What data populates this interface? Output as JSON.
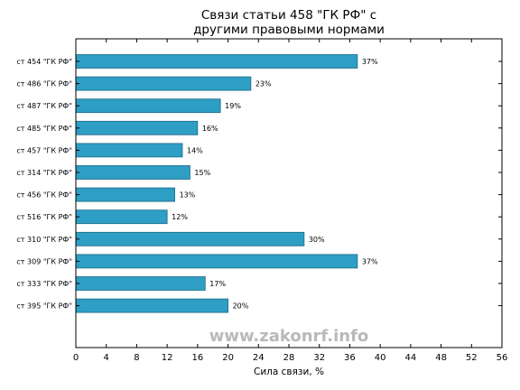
{
  "chart_data": {
    "type": "bar",
    "orientation": "horizontal",
    "title": [
      "Связи статьи 458 \"ГК РФ\" с",
      "другими правовыми нормами"
    ],
    "xlabel": "Сила связи, %",
    "xlim": [
      0,
      56
    ],
    "xticks": [
      0,
      4,
      8,
      12,
      16,
      20,
      24,
      28,
      32,
      36,
      40,
      44,
      48,
      52,
      56
    ],
    "categories": [
      "ст 454 \"ГК РФ\"",
      "ст 486 \"ГК РФ\"",
      "ст 487 \"ГК РФ\"",
      "ст 485 \"ГК РФ\"",
      "ст 457 \"ГК РФ\"",
      "ст 314 \"ГК РФ\"",
      "ст 456 \"ГК РФ\"",
      "ст 516 \"ГК РФ\"",
      "ст 310 \"ГК РФ\"",
      "ст 309 \"ГК РФ\"",
      "ст 333 \"ГК РФ\"",
      "ст 395 \"ГК РФ\""
    ],
    "values": [
      37,
      23,
      19,
      16,
      14,
      15,
      13,
      12,
      30,
      37,
      17,
      20
    ],
    "value_labels": [
      "37%",
      "23%",
      "19%",
      "16%",
      "14%",
      "15%",
      "13%",
      "12%",
      "30%",
      "37%",
      "17%",
      "20%"
    ],
    "bar_color": "#2e9ec4",
    "bar_edge_color": "#1d6a85",
    "grid": false
  },
  "watermark": "www.zakonrf.info"
}
